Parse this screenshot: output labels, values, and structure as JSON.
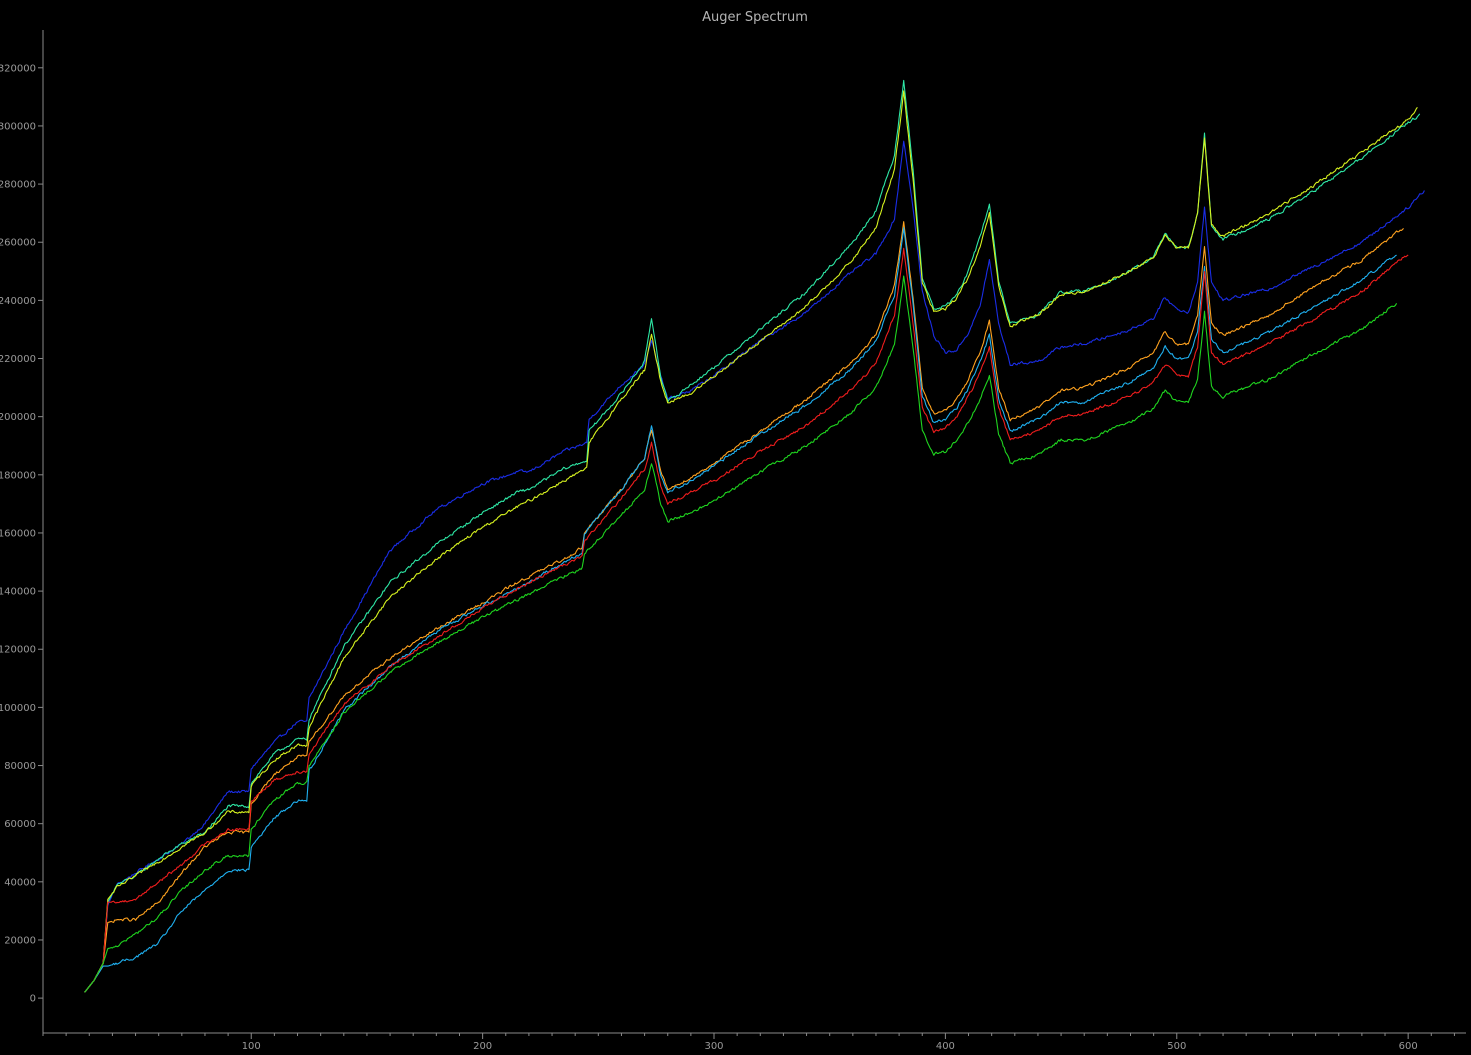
{
  "chart_data": {
    "type": "line",
    "title": "Auger Spectrum",
    "xlabel": "",
    "ylabel": "",
    "xlim": [
      10,
      625
    ],
    "ylim": [
      -12000,
      333000
    ],
    "x_ticks": [
      100,
      200,
      300,
      400,
      500,
      600
    ],
    "x_minor_step": 10,
    "y_ticks": [
      0,
      20000,
      40000,
      60000,
      80000,
      100000,
      120000,
      140000,
      160000,
      180000,
      200000,
      220000,
      240000,
      260000,
      280000,
      300000,
      320000
    ],
    "grid": false,
    "legend": "none",
    "background": "#000000",
    "series": [
      {
        "color": "#1a2de6",
        "x": [
          28,
          32,
          36,
          38,
          42,
          50,
          60,
          70,
          80,
          90,
          99,
          100,
          110,
          120,
          124,
          125,
          140,
          160,
          180,
          200,
          215,
          220,
          235,
          245,
          246,
          260,
          270,
          273,
          277,
          280,
          290,
          300,
          320,
          340,
          360,
          370,
          378,
          382,
          386,
          390,
          395,
          400,
          405,
          410,
          415,
          419,
          423,
          428,
          440,
          450,
          460,
          480,
          490,
          495,
          500,
          505,
          509,
          512,
          515,
          520,
          540,
          560,
          580,
          600,
          607
        ],
        "y": [
          2000,
          6000,
          12000,
          32000,
          39000,
          43000,
          48000,
          53000,
          60000,
          71000,
          71000,
          79000,
          88000,
          95000,
          95000,
          103000,
          126000,
          154000,
          168000,
          177000,
          181000,
          181000,
          188000,
          191000,
          199000,
          211000,
          218000,
          226000,
          214000,
          206000,
          209000,
          214000,
          226000,
          236000,
          250000,
          256000,
          268000,
          295000,
          272000,
          243000,
          228000,
          222000,
          223000,
          229000,
          238000,
          254000,
          232000,
          218000,
          219000,
          224000,
          225000,
          230000,
          234000,
          241000,
          237000,
          236000,
          246000,
          272000,
          246000,
          240000,
          244000,
          252000,
          260000,
          272000,
          278000
        ]
      },
      {
        "color": "#2ee8a6",
        "x": [
          28,
          32,
          36,
          38,
          42,
          50,
          60,
          70,
          80,
          90,
          99,
          100,
          110,
          120,
          124,
          125,
          140,
          160,
          180,
          200,
          215,
          220,
          235,
          245,
          246,
          260,
          270,
          273,
          277,
          280,
          290,
          300,
          320,
          340,
          360,
          370,
          378,
          382,
          386,
          390,
          395,
          400,
          405,
          410,
          415,
          419,
          423,
          428,
          440,
          450,
          460,
          480,
          490,
          495,
          500,
          505,
          509,
          512,
          515,
          520,
          540,
          560,
          580,
          600,
          605
        ],
        "y": [
          2000,
          6000,
          12000,
          33000,
          39000,
          42000,
          48000,
          53000,
          57000,
          66000,
          66000,
          74000,
          84000,
          89000,
          89000,
          96000,
          121000,
          143000,
          156000,
          167000,
          174000,
          175000,
          182000,
          185000,
          195000,
          208000,
          219000,
          234000,
          214000,
          205000,
          211000,
          217000,
          230000,
          243000,
          260000,
          271000,
          290000,
          316000,
          285000,
          248000,
          237000,
          238000,
          242000,
          250000,
          262000,
          273000,
          247000,
          232000,
          235000,
          243000,
          243000,
          250000,
          255000,
          263000,
          258000,
          258000,
          270000,
          297000,
          266000,
          261000,
          268000,
          278000,
          289000,
          301000,
          304000
        ]
      },
      {
        "color": "#d6f21f",
        "x": [
          28,
          32,
          36,
          38,
          42,
          50,
          60,
          70,
          80,
          90,
          99,
          100,
          110,
          120,
          124,
          125,
          140,
          160,
          180,
          200,
          215,
          220,
          235,
          245,
          246,
          260,
          270,
          273,
          277,
          280,
          290,
          300,
          320,
          340,
          360,
          370,
          378,
          382,
          386,
          390,
          395,
          400,
          405,
          410,
          415,
          419,
          423,
          428,
          440,
          450,
          460,
          480,
          490,
          495,
          500,
          505,
          509,
          512,
          515,
          520,
          540,
          560,
          580,
          600,
          604
        ],
        "y": [
          2000,
          6000,
          12000,
          34000,
          38000,
          42000,
          47000,
          52000,
          57000,
          64000,
          64000,
          73000,
          82000,
          87000,
          87000,
          93000,
          117000,
          138000,
          151000,
          162000,
          169000,
          171000,
          178000,
          182000,
          191000,
          206000,
          216000,
          228000,
          212000,
          205000,
          208000,
          214000,
          226000,
          238000,
          254000,
          265000,
          285000,
          312000,
          282000,
          246000,
          236000,
          237000,
          241000,
          248000,
          258000,
          270000,
          245000,
          231000,
          235000,
          242000,
          243000,
          250000,
          255000,
          262000,
          258000,
          258000,
          270000,
          296000,
          266000,
          262000,
          270000,
          280000,
          291000,
          302000,
          306000
        ]
      },
      {
        "color": "#ffa21f",
        "x": [
          28,
          32,
          36,
          38,
          42,
          50,
          60,
          70,
          80,
          90,
          99,
          100,
          110,
          120,
          124,
          125,
          140,
          160,
          180,
          200,
          215,
          220,
          235,
          243,
          244,
          260,
          270,
          273,
          277,
          280,
          290,
          300,
          320,
          340,
          360,
          370,
          378,
          382,
          386,
          390,
          395,
          400,
          405,
          410,
          415,
          419,
          423,
          428,
          440,
          450,
          460,
          480,
          490,
          495,
          500,
          505,
          509,
          512,
          515,
          520,
          540,
          560,
          580,
          598
        ],
        "y": [
          2000,
          6000,
          12000,
          26000,
          27000,
          27000,
          33000,
          43000,
          52000,
          57000,
          57000,
          67000,
          77000,
          83000,
          83000,
          88000,
          104000,
          117000,
          127000,
          136000,
          143000,
          145000,
          151000,
          155000,
          160000,
          175000,
          186000,
          196000,
          181000,
          175000,
          179000,
          184000,
          195000,
          206000,
          219000,
          228000,
          245000,
          267000,
          241000,
          210000,
          201000,
          202000,
          206000,
          213000,
          222000,
          233000,
          210000,
          199000,
          203000,
          209000,
          210000,
          217000,
          222000,
          229000,
          225000,
          225000,
          235000,
          258000,
          232000,
          228000,
          235000,
          245000,
          254000,
          265000
        ]
      },
      {
        "color": "#1fb0f0",
        "x": [
          28,
          32,
          36,
          38,
          42,
          50,
          60,
          70,
          80,
          90,
          99,
          100,
          110,
          120,
          124,
          125,
          140,
          160,
          180,
          200,
          215,
          220,
          235,
          243,
          244,
          260,
          270,
          273,
          277,
          280,
          290,
          300,
          320,
          340,
          360,
          370,
          378,
          382,
          386,
          390,
          395,
          400,
          405,
          410,
          415,
          419,
          423,
          428,
          440,
          450,
          460,
          480,
          490,
          495,
          500,
          505,
          509,
          512,
          515,
          520,
          540,
          560,
          580,
          595
        ],
        "y": [
          2000,
          6000,
          11000,
          11000,
          12000,
          14000,
          19000,
          30000,
          37000,
          44000,
          44000,
          52000,
          62000,
          68000,
          68000,
          78000,
          99000,
          114000,
          126000,
          135000,
          141000,
          143000,
          150000,
          153000,
          160000,
          175000,
          186000,
          197000,
          180000,
          174000,
          178000,
          183000,
          194000,
          204000,
          217000,
          226000,
          242000,
          265000,
          239000,
          207000,
          198000,
          199000,
          203000,
          210000,
          219000,
          228000,
          206000,
          195000,
          199000,
          205000,
          205000,
          212000,
          217000,
          224000,
          220000,
          220000,
          229000,
          252000,
          227000,
          222000,
          229000,
          238000,
          247000,
          256000
        ]
      },
      {
        "color": "#ee1d1d",
        "x": [
          28,
          32,
          36,
          38,
          42,
          50,
          60,
          70,
          80,
          90,
          99,
          100,
          110,
          120,
          124,
          125,
          140,
          160,
          180,
          200,
          215,
          220,
          235,
          243,
          244,
          260,
          270,
          273,
          277,
          280,
          290,
          300,
          320,
          340,
          360,
          370,
          378,
          382,
          386,
          390,
          395,
          400,
          405,
          410,
          415,
          419,
          423,
          428,
          440,
          450,
          460,
          480,
          490,
          495,
          500,
          505,
          509,
          512,
          515,
          520,
          540,
          560,
          580,
          600
        ],
        "y": [
          2000,
          6000,
          12000,
          33000,
          33000,
          34000,
          40000,
          46000,
          53000,
          58000,
          58000,
          68000,
          75000,
          78000,
          78000,
          84000,
          101000,
          114000,
          124000,
          134000,
          141000,
          143000,
          149000,
          152000,
          157000,
          172000,
          182000,
          191000,
          176000,
          170000,
          174000,
          178000,
          188000,
          197000,
          210000,
          218000,
          235000,
          258000,
          232000,
          203000,
          195000,
          196000,
          200000,
          207000,
          215000,
          224000,
          203000,
          192000,
          195000,
          200000,
          201000,
          207000,
          212000,
          218000,
          214000,
          214000,
          224000,
          250000,
          222000,
          218000,
          225000,
          234000,
          243000,
          256000
        ]
      },
      {
        "color": "#1fd41f",
        "x": [
          28,
          32,
          36,
          38,
          42,
          50,
          60,
          70,
          80,
          90,
          99,
          100,
          110,
          120,
          124,
          125,
          140,
          160,
          180,
          200,
          215,
          220,
          235,
          243,
          244,
          260,
          270,
          273,
          277,
          280,
          290,
          300,
          320,
          340,
          360,
          370,
          378,
          382,
          386,
          390,
          395,
          400,
          405,
          410,
          415,
          419,
          423,
          428,
          440,
          450,
          460,
          480,
          490,
          495,
          500,
          505,
          509,
          512,
          515,
          520,
          540,
          560,
          580,
          595
        ],
        "y": [
          2000,
          6000,
          12000,
          17000,
          18000,
          22000,
          28000,
          37000,
          44000,
          49000,
          49000,
          58000,
          68000,
          74000,
          74000,
          80000,
          98000,
          112000,
          122000,
          131000,
          137000,
          139000,
          145000,
          148000,
          153000,
          166000,
          175000,
          184000,
          170000,
          164000,
          167000,
          171000,
          181000,
          190000,
          202000,
          210000,
          225000,
          248000,
          224000,
          195000,
          187000,
          188000,
          192000,
          198000,
          206000,
          214000,
          194000,
          184000,
          187000,
          192000,
          192000,
          198000,
          203000,
          209000,
          205000,
          205000,
          213000,
          236000,
          210000,
          207000,
          213000,
          222000,
          230000,
          239000
        ]
      }
    ]
  }
}
